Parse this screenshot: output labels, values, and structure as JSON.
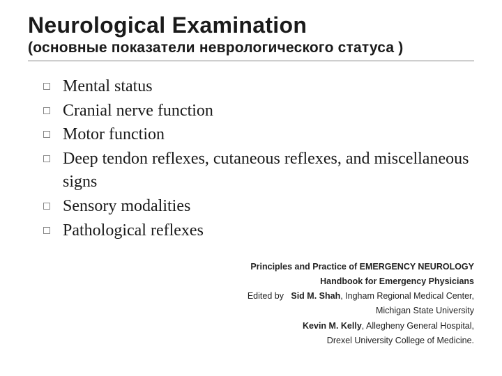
{
  "title": "Neurological Examination",
  "subtitle": "(основные показатели неврологического статуса )",
  "bullets": [
    "Mental status",
    "Cranial nerve function",
    "Motor function",
    "Deep tendon reflexes, cutaneous reflexes, and miscellaneous signs",
    "Sensory modalities",
    "Pathological reflexes"
  ],
  "credits": {
    "book_title": "Principles and Practice of EMERGENCY NEUROLOGY",
    "book_subtitle": "Handbook for Emergency Physicians",
    "edited_label": "Edited by",
    "editor1_name": "Sid M. Shah",
    "editor1_aff1": ", Ingham Regional Medical Center,",
    "editor1_aff2": "Michigan State University",
    "editor2_name": "Kevin M. Kelly",
    "editor2_aff1": ", Allegheny General Hospital,",
    "editor2_aff2": "Drexel University College of Medicine."
  },
  "style": {
    "background_color": "#ffffff",
    "title_fontsize": 32,
    "subtitle_fontsize": 21,
    "body_fontsize": 24,
    "credits_fontsize": 12.5,
    "title_font": "Trebuchet MS",
    "body_font": "Georgia",
    "divider_color": "#808080",
    "bullet_border_color": "#888888",
    "text_color": "#1a1a1a"
  }
}
